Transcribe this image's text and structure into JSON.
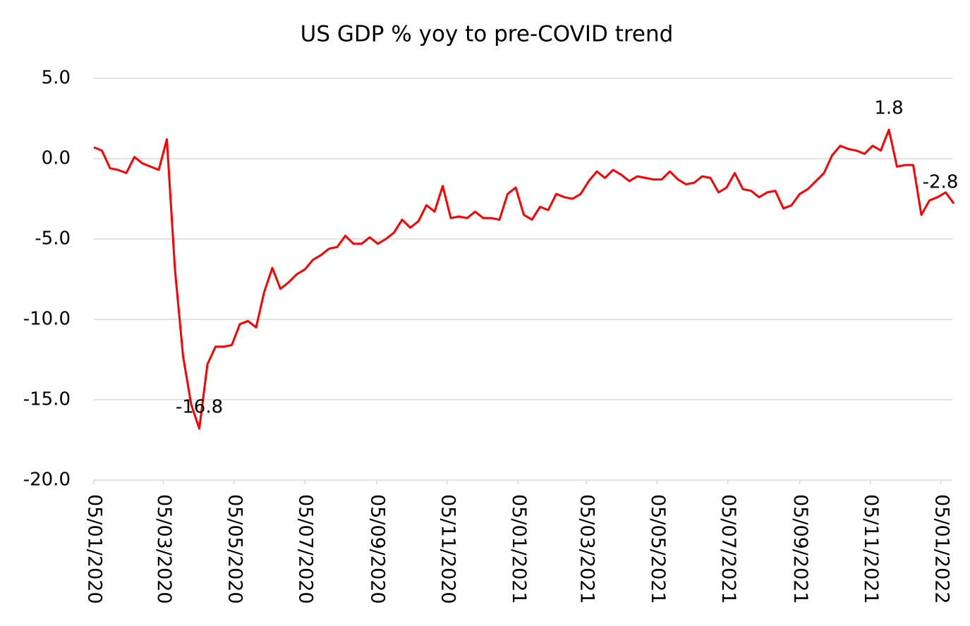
{
  "chart_data": {
    "type": "line",
    "title": "US GDP % yoy to pre-COVID trend",
    "x": [
      "2020-01-05",
      "2020-01-12",
      "2020-01-19",
      "2020-01-26",
      "2020-02-02",
      "2020-02-09",
      "2020-02-16",
      "2020-02-23",
      "2020-03-01",
      "2020-03-08",
      "2020-03-15",
      "2020-03-22",
      "2020-03-29",
      "2020-04-05",
      "2020-04-12",
      "2020-04-19",
      "2020-04-26",
      "2020-05-03",
      "2020-05-10",
      "2020-05-17",
      "2020-05-24",
      "2020-05-31",
      "2020-06-07",
      "2020-06-14",
      "2020-06-21",
      "2020-06-28",
      "2020-07-05",
      "2020-07-12",
      "2020-07-19",
      "2020-07-26",
      "2020-08-02",
      "2020-08-09",
      "2020-08-16",
      "2020-08-23",
      "2020-08-30",
      "2020-09-06",
      "2020-09-13",
      "2020-09-20",
      "2020-09-27",
      "2020-10-04",
      "2020-10-11",
      "2020-10-18",
      "2020-10-25",
      "2020-11-01",
      "2020-11-08",
      "2020-11-15",
      "2020-11-22",
      "2020-11-29",
      "2020-12-06",
      "2020-12-13",
      "2020-12-20",
      "2020-12-27",
      "2021-01-03",
      "2021-01-10",
      "2021-01-17",
      "2021-01-24",
      "2021-01-31",
      "2021-02-07",
      "2021-02-14",
      "2021-02-21",
      "2021-02-28",
      "2021-03-07",
      "2021-03-14",
      "2021-03-21",
      "2021-03-28",
      "2021-04-04",
      "2021-04-11",
      "2021-04-18",
      "2021-04-25",
      "2021-05-02",
      "2021-05-09",
      "2021-05-16",
      "2021-05-23",
      "2021-05-30",
      "2021-06-06",
      "2021-06-13",
      "2021-06-20",
      "2021-06-27",
      "2021-07-04",
      "2021-07-11",
      "2021-07-18",
      "2021-07-25",
      "2021-08-01",
      "2021-08-08",
      "2021-08-15",
      "2021-08-22",
      "2021-08-29",
      "2021-09-05",
      "2021-09-12",
      "2021-09-19",
      "2021-09-26",
      "2021-10-03",
      "2021-10-10",
      "2021-10-17",
      "2021-10-24",
      "2021-10-31",
      "2021-11-07",
      "2021-11-14",
      "2021-11-21",
      "2021-11-28",
      "2021-12-05",
      "2021-12-12",
      "2021-12-19",
      "2021-12-26",
      "2022-01-02",
      "2022-01-09",
      "2022-01-16"
    ],
    "series": [
      {
        "name": "US GDP % yoy to pre-COVID trend",
        "color": "#ff0000",
        "values": [
          0.7,
          0.5,
          -0.6,
          -0.7,
          -0.9,
          0.1,
          -0.3,
          -0.5,
          -0.7,
          1.2,
          -6.9,
          -12.3,
          -15.3,
          -16.8,
          -12.8,
          -11.7,
          -11.7,
          -11.6,
          -10.3,
          -10.1,
          -10.5,
          -8.3,
          -6.8,
          -8.1,
          -7.7,
          -7.2,
          -6.9,
          -6.3,
          -6.0,
          -5.6,
          -5.5,
          -4.8,
          -5.3,
          -5.3,
          -4.9,
          -5.3,
          -5.0,
          -4.6,
          -3.8,
          -4.3,
          -3.9,
          -2.9,
          -3.3,
          -1.7,
          -3.7,
          -3.6,
          -3.7,
          -3.3,
          -3.7,
          -3.7,
          -3.8,
          -2.2,
          -1.8,
          -3.5,
          -3.8,
          -3.0,
          -3.2,
          -2.2,
          -2.4,
          -2.5,
          -2.2,
          -1.4,
          -0.8,
          -1.2,
          -0.7,
          -1.0,
          -1.4,
          -1.1,
          -1.2,
          -1.3,
          -1.3,
          -0.8,
          -1.3,
          -1.6,
          -1.5,
          -1.1,
          -1.2,
          -2.1,
          -1.8,
          -0.9,
          -1.9,
          -2.0,
          -2.4,
          -2.1,
          -2.0,
          -3.1,
          -2.9,
          -2.2,
          -1.9,
          -1.4,
          -0.9,
          0.2,
          0.8,
          0.6,
          0.5,
          0.3,
          0.8,
          0.5,
          1.8,
          -0.5,
          -0.4,
          -0.4,
          -3.5,
          -2.6,
          -2.4,
          -2.1,
          -2.8
        ],
        "value_labels": [
          null,
          null,
          null,
          null,
          null,
          null,
          null,
          null,
          null,
          null,
          null,
          null,
          null,
          "-16.8",
          null,
          null,
          null,
          null,
          null,
          null,
          null,
          null,
          null,
          null,
          null,
          null,
          null,
          null,
          null,
          null,
          null,
          null,
          null,
          null,
          null,
          null,
          null,
          null,
          null,
          null,
          null,
          null,
          null,
          null,
          null,
          null,
          null,
          null,
          null,
          null,
          null,
          null,
          null,
          null,
          null,
          null,
          null,
          null,
          null,
          null,
          null,
          null,
          null,
          null,
          null,
          null,
          null,
          null,
          null,
          null,
          null,
          null,
          null,
          null,
          null,
          null,
          null,
          null,
          null,
          null,
          null,
          null,
          null,
          null,
          null,
          null,
          null,
          null,
          null,
          null,
          null,
          null,
          null,
          null,
          null,
          null,
          null,
          null,
          "1.8",
          null,
          null,
          null,
          null,
          null,
          null,
          null,
          "-2.8"
        ]
      }
    ],
    "xlim": [
      "2020-01-05",
      "2022-01-16"
    ],
    "xticks": [
      {
        "value": "2020-01-05",
        "label": "05/01/2020"
      },
      {
        "value": "2020-03-05",
        "label": "05/03/2020"
      },
      {
        "value": "2020-05-05",
        "label": "05/05/2020"
      },
      {
        "value": "2020-07-05",
        "label": "05/07/2020"
      },
      {
        "value": "2020-09-05",
        "label": "05/09/2020"
      },
      {
        "value": "2020-11-05",
        "label": "05/11/2020"
      },
      {
        "value": "2021-01-05",
        "label": "05/01/2021"
      },
      {
        "value": "2021-03-05",
        "label": "05/03/2021"
      },
      {
        "value": "2021-05-05",
        "label": "05/05/2021"
      },
      {
        "value": "2021-07-05",
        "label": "05/07/2021"
      },
      {
        "value": "2021-09-05",
        "label": "05/09/2021"
      },
      {
        "value": "2021-11-05",
        "label": "05/11/2021"
      },
      {
        "value": "2022-01-05",
        "label": "05/01/2022"
      }
    ],
    "ylim": [
      -20,
      5
    ],
    "yticks": [
      {
        "value": -20,
        "label": "-20.0"
      },
      {
        "value": -15,
        "label": "-15.0"
      },
      {
        "value": -10,
        "label": "-10.0"
      },
      {
        "value": -5,
        "label": "-5.0"
      },
      {
        "value": 0,
        "label": "0.0"
      },
      {
        "value": 5,
        "label": "5.0"
      }
    ],
    "grid": true
  }
}
